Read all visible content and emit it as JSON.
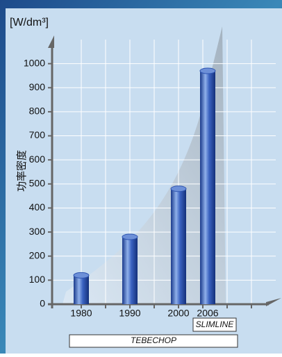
{
  "chart_data": {
    "type": "bar",
    "title": "[W/dm³]",
    "y_label": "功率密度",
    "x": [
      1980,
      1990,
      2000,
      2006
    ],
    "values": [
      120,
      280,
      480,
      970
    ],
    "color": "#2f55b0",
    "xlim": [
      1974,
      2020
    ],
    "xticks": [
      1980,
      1990,
      2000,
      2006
    ],
    "xgrid": [
      1980,
      1985,
      1990,
      1995,
      2000,
      2005,
      2010,
      2015
    ],
    "ylim": [
      0,
      1100
    ],
    "yticks": [
      0,
      100,
      200,
      300,
      400,
      500,
      600,
      700,
      800,
      900,
      1000
    ],
    "grid": true,
    "annotations": [
      "SLIMLINE",
      "TEBECHOP"
    ]
  }
}
